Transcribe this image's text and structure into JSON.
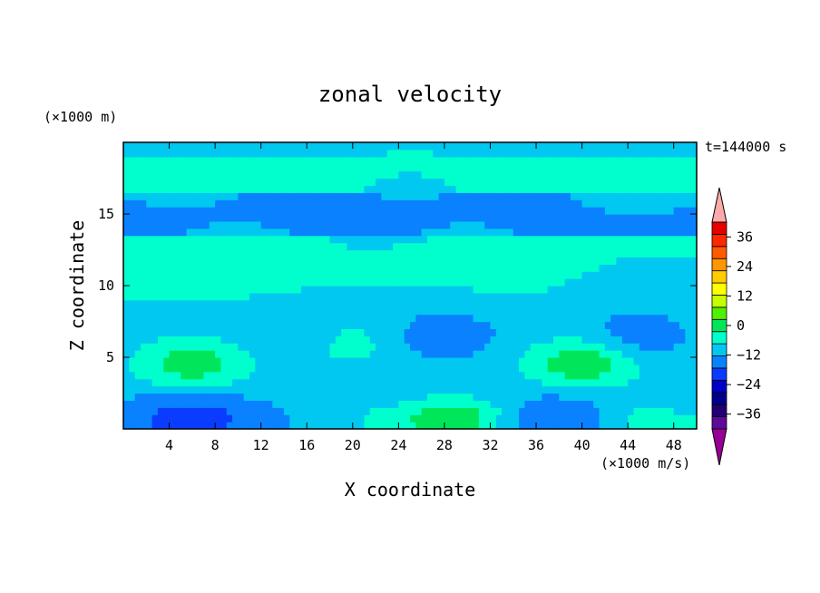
{
  "chart_data": {
    "type": "heatmap",
    "title": "zonal velocity",
    "xlabel": "X coordinate",
    "ylabel": "Z coordinate",
    "y_unit": "(×1000 m)",
    "x_unit": "(×1000 m/s)",
    "time_label": "t=144000 s",
    "xlim": [
      0,
      50
    ],
    "ylim": [
      0,
      20
    ],
    "x_ticks": [
      "4",
      "8",
      "12",
      "16",
      "20",
      "24",
      "28",
      "32",
      "36",
      "40",
      "44",
      "48"
    ],
    "x_tick_values": [
      4,
      8,
      12,
      16,
      20,
      24,
      28,
      32,
      36,
      40,
      44,
      48
    ],
    "y_ticks": [
      "5",
      "10",
      "15"
    ],
    "y_tick_values": [
      5,
      10,
      15
    ],
    "colorbar": {
      "range": [
        -42,
        42
      ],
      "step": 6,
      "tick_labels": [
        "36",
        "24",
        "12",
        "0",
        "−12",
        "−24",
        "−36"
      ],
      "tick_values": [
        36,
        24,
        12,
        0,
        -12,
        -24,
        -36
      ],
      "colors": [
        "#5c0a99",
        "#200070",
        "#00008c",
        "#0000c8",
        "#0a3cff",
        "#0a82ff",
        "#00c8f0",
        "#00ffcc",
        "#00e65a",
        "#50f000",
        "#c8ff00",
        "#ffff00",
        "#ffcc00",
        "#ff9600",
        "#ff5a00",
        "#ff2800",
        "#e60000"
      ],
      "over_color": "#ffaaaa",
      "under_color": "#960096"
    },
    "field": [
      {
        "x": 0,
        "z": 0.5,
        "u": -6
      },
      {
        "x": 6,
        "z": 0.6,
        "u": -17
      },
      {
        "x": 14,
        "z": 0.5,
        "u": -6
      },
      {
        "x": 22,
        "z": 0.5,
        "u": 0
      },
      {
        "x": 29,
        "z": 0.6,
        "u": 12
      },
      {
        "x": 36,
        "z": 0.5,
        "u": -6
      },
      {
        "x": 38,
        "z": 0.6,
        "u": -12
      },
      {
        "x": 46,
        "z": 0.5,
        "u": 3
      },
      {
        "x": 6,
        "z": 4.6,
        "u": 10
      },
      {
        "x": 40,
        "z": 4.6,
        "u": 11
      },
      {
        "x": 28,
        "z": 6.5,
        "u": -11
      },
      {
        "x": 45,
        "z": 6.6,
        "u": -10
      },
      {
        "x": 20,
        "z": 6,
        "u": 2
      },
      {
        "x": 15,
        "z": 6.5,
        "u": -4
      },
      {
        "x": 10,
        "z": 12,
        "u": 2
      },
      {
        "x": 30,
        "z": 12,
        "u": 1
      },
      {
        "x": 25,
        "z": 16,
        "u": -7
      },
      {
        "x": 5,
        "z": 18,
        "u": 4
      },
      {
        "x": 25,
        "z": 18.5,
        "u": 3
      },
      {
        "x": 45,
        "z": 17.5,
        "u": 5
      }
    ]
  }
}
